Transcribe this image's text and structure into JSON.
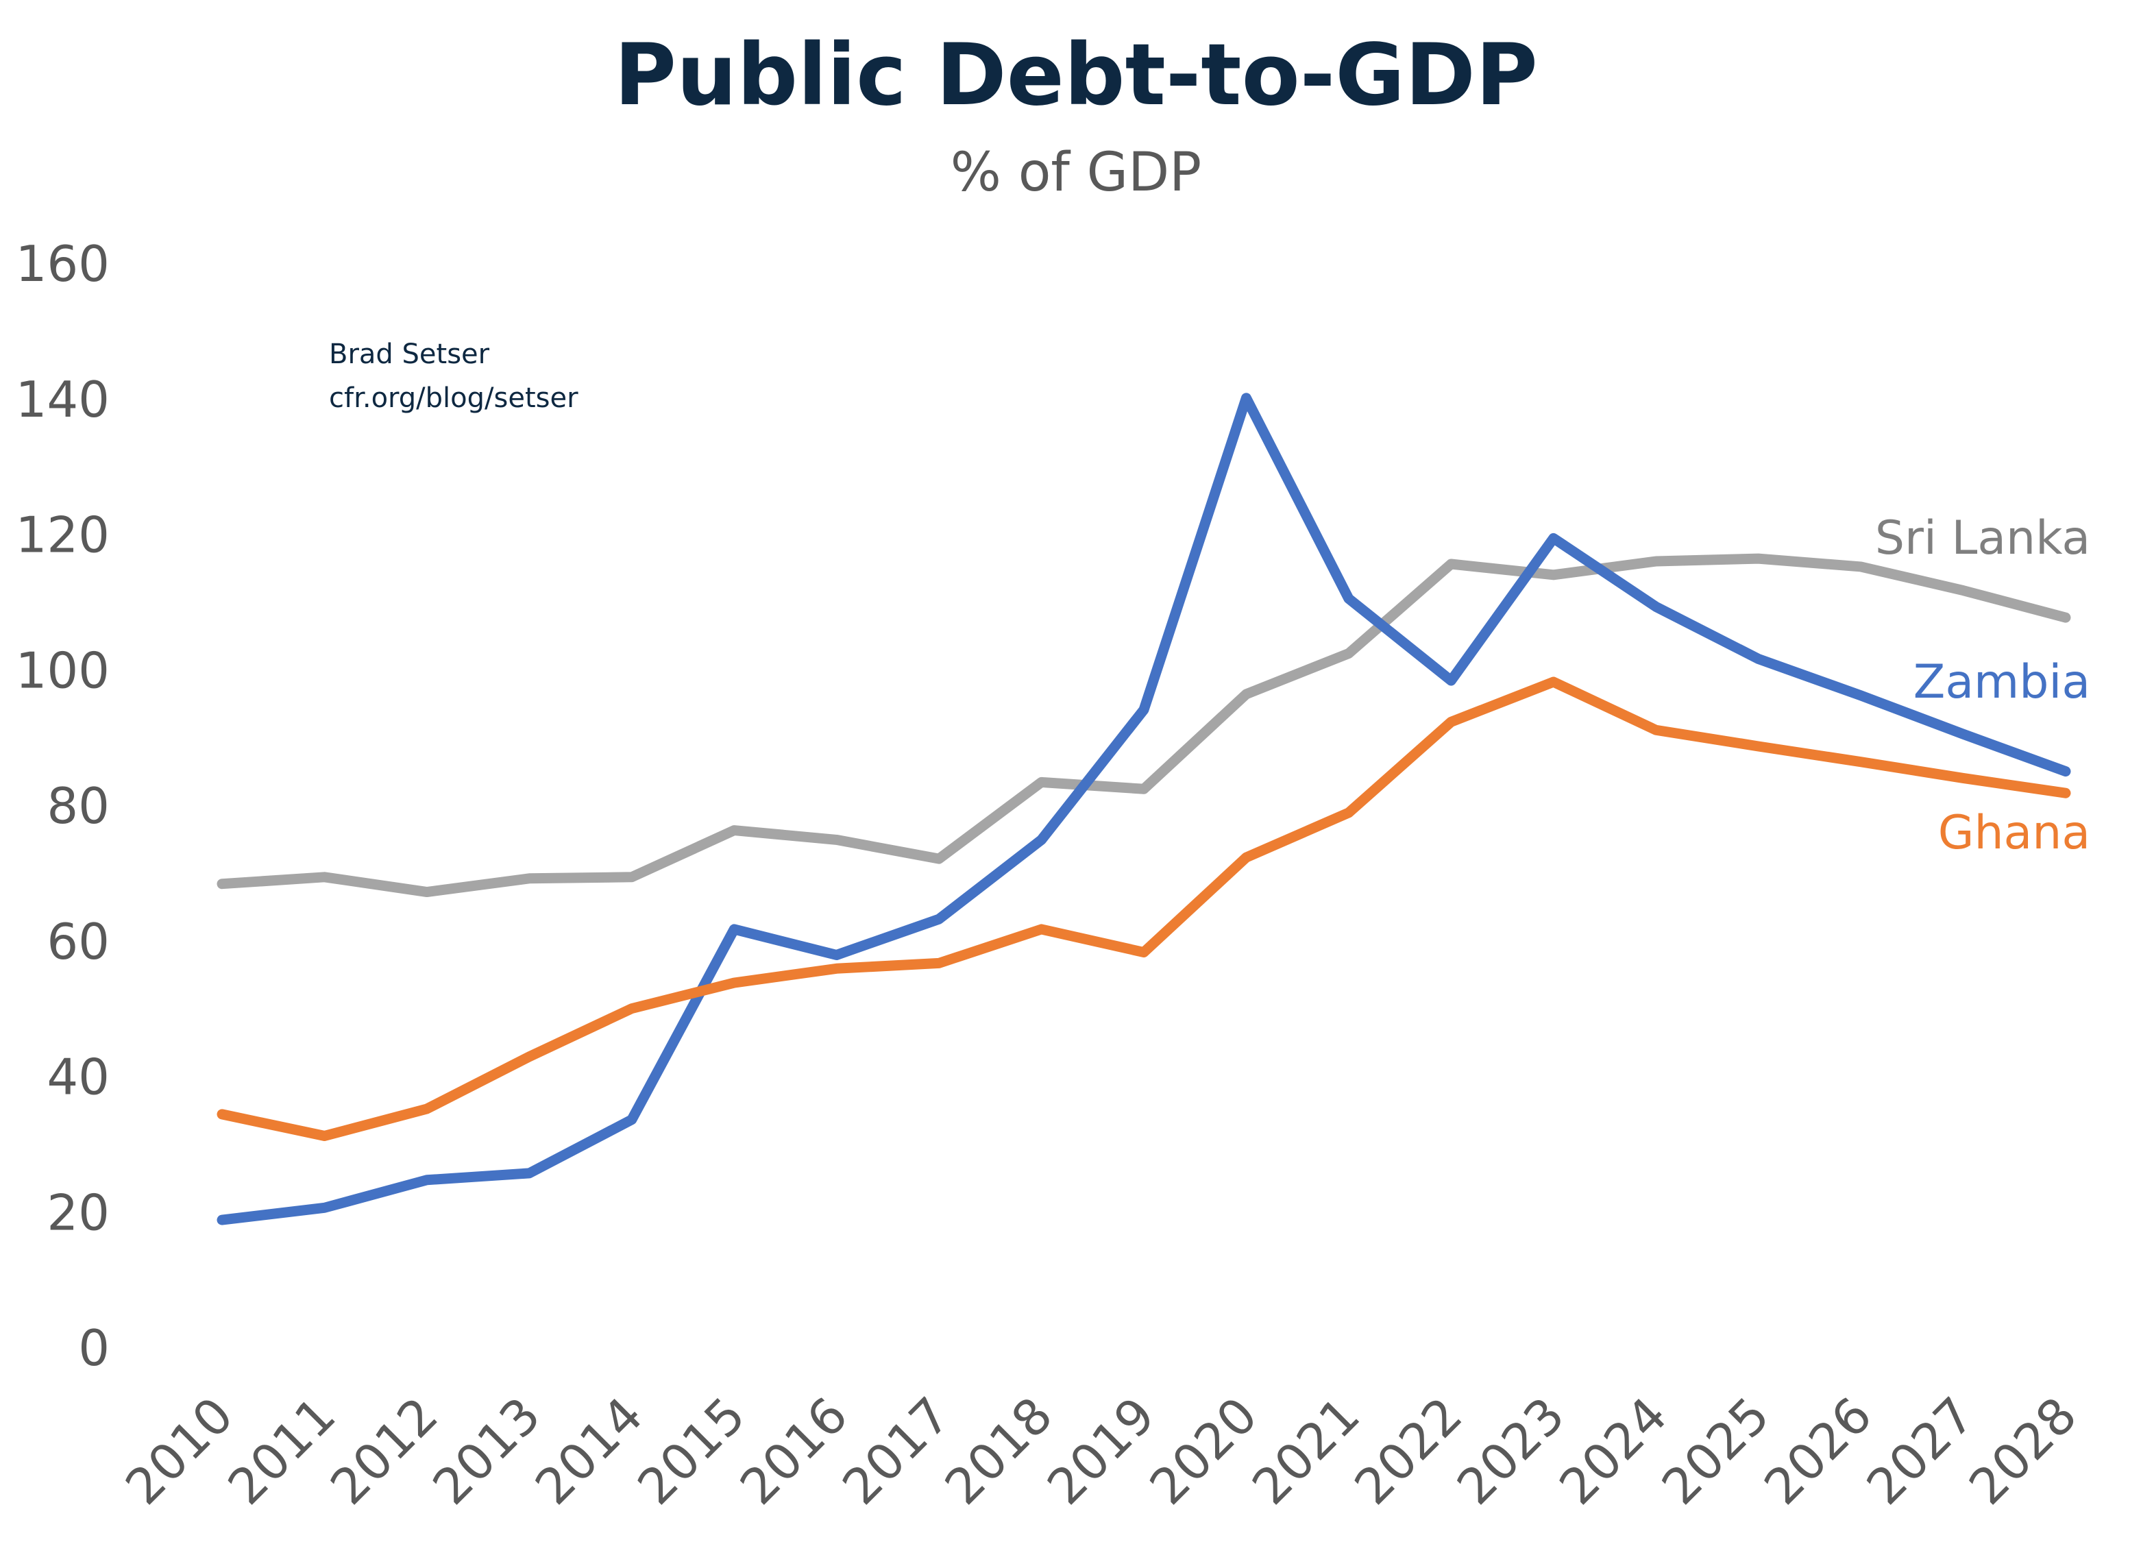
{
  "chart_data": {
    "type": "line",
    "title": "Public Debt-to-GDP",
    "subtitle": "% of GDP",
    "credit": [
      "Brad Setser",
      "cfr.org/blog/setser"
    ],
    "xlabel": "",
    "ylabel": "",
    "ylim": [
      0,
      160
    ],
    "yticks": [
      "0",
      "20",
      "40",
      "60",
      "80",
      "100",
      "120",
      "140",
      "160"
    ],
    "grid": false,
    "legend": "inline labels at line ends",
    "categories": [
      "2010",
      "2011",
      "2012",
      "2013",
      "2014",
      "2015",
      "2016",
      "2017",
      "2018",
      "2019",
      "2020",
      "2021",
      "2022",
      "2023",
      "2024",
      "2025",
      "2026",
      "2027",
      "2028"
    ],
    "series": [
      {
        "name": "Sri Lanka",
        "color": "#a5a5a5",
        "values": [
          68.4,
          69.4,
          67.2,
          69.2,
          69.4,
          76.3,
          74.9,
          72.1,
          83.4,
          82.4,
          96.4,
          102.4,
          115.6,
          114.0,
          116.0,
          116.4,
          115.2,
          111.7,
          107.7
        ]
      },
      {
        "name": "Zambia",
        "color": "#4472c4",
        "values": [
          18.8,
          20.6,
          24.7,
          25.7,
          33.6,
          61.7,
          57.9,
          63.2,
          74.9,
          94.1,
          140.1,
          110.5,
          98.4,
          119.4,
          109.3,
          101.6,
          96.2,
          90.5,
          85.0
        ]
      },
      {
        "name": "Ghana",
        "color": "#ed7d31",
        "values": [
          34.4,
          31.2,
          35.2,
          42.9,
          50.0,
          53.8,
          55.9,
          56.7,
          61.7,
          58.3,
          72.3,
          78.9,
          92.3,
          98.2,
          91.1,
          88.7,
          86.4,
          84.0,
          81.8
        ]
      }
    ]
  }
}
